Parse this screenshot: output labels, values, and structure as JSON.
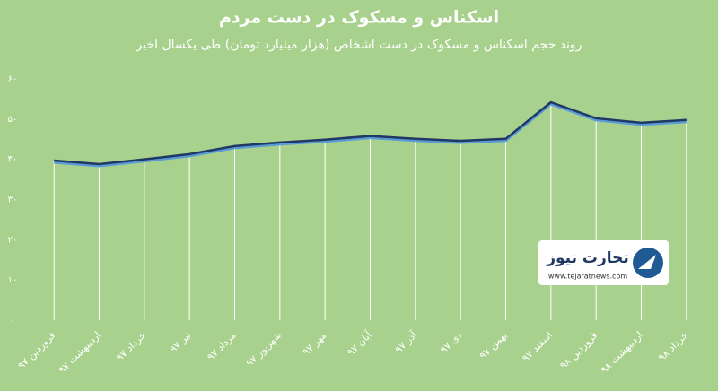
{
  "chart_data": {
    "type": "line",
    "title": "اسکناس و مسکوک در دست مردم",
    "subtitle": "روند حجم اسکناس و مسکوک در دست اشخاص (هزار میلیارد تومان) طی یکسال اخیر",
    "categories": [
      "فروردین ۹۷",
      "اردیبهشت ۹۷",
      "خرداد ۹۷",
      "تیر ۹۷",
      "مرداد ۹۷",
      "شهریور ۹۷",
      "مهر ۹۷",
      "آبان ۹۷",
      "آذر ۹۷",
      "دی ۹۷",
      "بهمن ۹۷",
      "اسفند ۹۷",
      "فروردین ۹۸",
      "اردیبهشت ۹۸",
      "خرداد ۹۸"
    ],
    "values": [
      39.7,
      38.8,
      40.0,
      41.3,
      43.3,
      44.2,
      44.9,
      45.8,
      45.1,
      44.6,
      45.1,
      54.2,
      50.2,
      49.1,
      49.8
    ],
    "color": "#1f3864",
    "ylim": [
      0,
      60
    ],
    "yticks": [
      {
        "value": 0,
        "label": "۰"
      },
      {
        "value": 10,
        "label": "۱۰"
      },
      {
        "value": 20,
        "label": "۲۰"
      },
      {
        "value": 30,
        "label": "۳۰"
      },
      {
        "value": 40,
        "label": "۴۰"
      },
      {
        "value": 50,
        "label": "۵۰"
      },
      {
        "value": 60,
        "label": "۶۰"
      }
    ],
    "watermark": {
      "name": "تجارت نیوز",
      "url": "www.tejaratnews.com"
    }
  }
}
